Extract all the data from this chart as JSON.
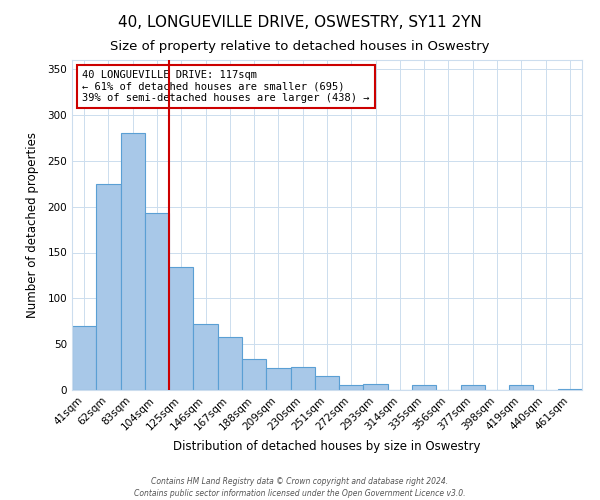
{
  "title": "40, LONGUEVILLE DRIVE, OSWESTRY, SY11 2YN",
  "subtitle": "Size of property relative to detached houses in Oswestry",
  "xlabel": "Distribution of detached houses by size in Oswestry",
  "ylabel": "Number of detached properties",
  "categories": [
    "41sqm",
    "62sqm",
    "83sqm",
    "104sqm",
    "125sqm",
    "146sqm",
    "167sqm",
    "188sqm",
    "209sqm",
    "230sqm",
    "251sqm",
    "272sqm",
    "293sqm",
    "314sqm",
    "335sqm",
    "356sqm",
    "377sqm",
    "398sqm",
    "419sqm",
    "440sqm",
    "461sqm"
  ],
  "values": [
    70,
    225,
    280,
    193,
    134,
    72,
    58,
    34,
    24,
    25,
    15,
    5,
    7,
    0,
    5,
    0,
    5,
    0,
    5,
    0,
    1
  ],
  "bar_color": "#a8c8e8",
  "bar_edge_color": "#5a9fd4",
  "red_line_index": 4,
  "red_line_color": "#cc0000",
  "annotation_line1": "40 LONGUEVILLE DRIVE: 117sqm",
  "annotation_line2": "← 61% of detached houses are smaller (695)",
  "annotation_line3": "39% of semi-detached houses are larger (438) →",
  "annotation_box_edge_color": "#cc0000",
  "ylim": [
    0,
    360
  ],
  "yticks": [
    0,
    50,
    100,
    150,
    200,
    250,
    300,
    350
  ],
  "background_color": "#ffffff",
  "footer_line1": "Contains HM Land Registry data © Crown copyright and database right 2024.",
  "footer_line2": "Contains public sector information licensed under the Open Government Licence v3.0.",
  "grid_color": "#ccddee",
  "title_fontsize": 11,
  "subtitle_fontsize": 9.5,
  "axis_label_fontsize": 8.5,
  "tick_fontsize": 7.5,
  "annotation_fontsize": 7.5,
  "footer_fontsize": 5.5
}
